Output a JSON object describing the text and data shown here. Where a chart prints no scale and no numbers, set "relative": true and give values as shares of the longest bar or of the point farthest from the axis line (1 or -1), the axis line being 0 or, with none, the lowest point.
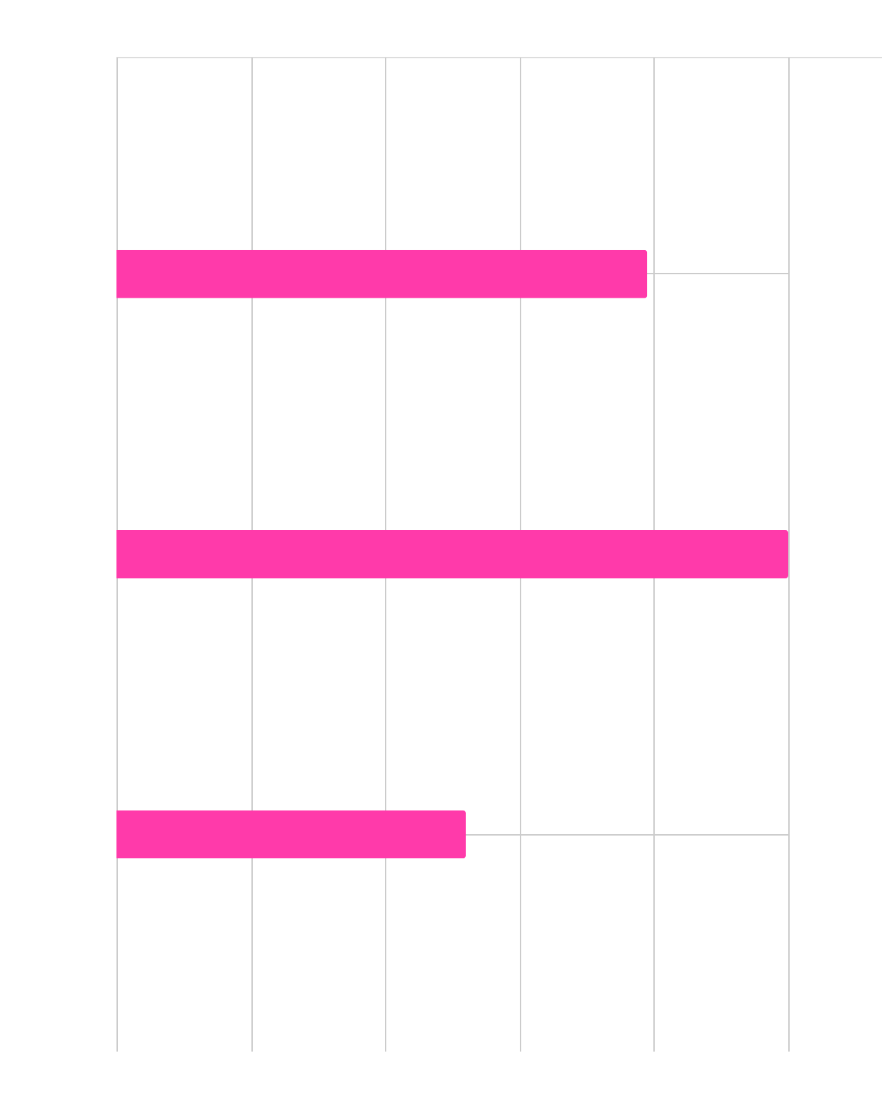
{
  "chart_data": {
    "type": "bar",
    "orientation": "horizontal",
    "relative": true,
    "categories": [
      null,
      null,
      null
    ],
    "values": [
      0.79,
      1,
      0.52
    ],
    "color": "#ff3aaa",
    "grid": true
  }
}
